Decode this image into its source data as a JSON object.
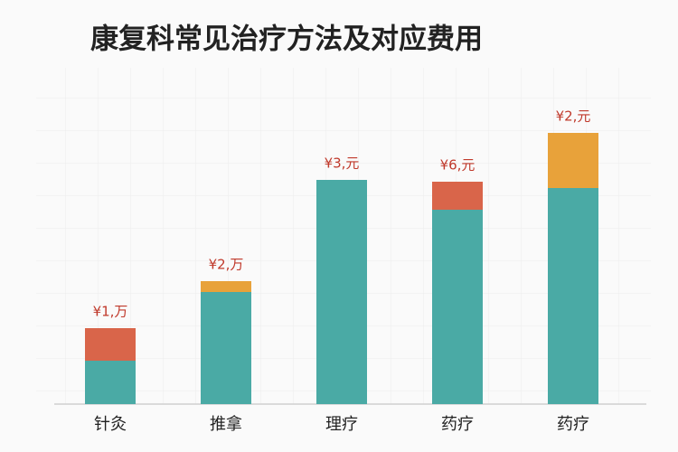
{
  "chart_data": {
    "type": "stacked_bar",
    "title": "康复科常见治疗方法及对应费用",
    "categories": [
      "针灸",
      "推拿",
      "理疗",
      "药疗",
      "药疗"
    ],
    "series": [
      {
        "color": "#4aaaa5",
        "values": [
          48,
          124,
          248,
          215,
          239
        ]
      },
      {
        "colors": [
          "#d9654a",
          "#e8a23a",
          null,
          "#d9654a",
          "#e8a23a"
        ],
        "values": [
          36,
          12,
          null,
          31,
          61
        ]
      }
    ],
    "labels": [
      "¥1,万",
      "¥2,万",
      "¥3,元",
      "¥6,元",
      "¥2,元"
    ],
    "ylim": [
      0,
      300
    ]
  }
}
